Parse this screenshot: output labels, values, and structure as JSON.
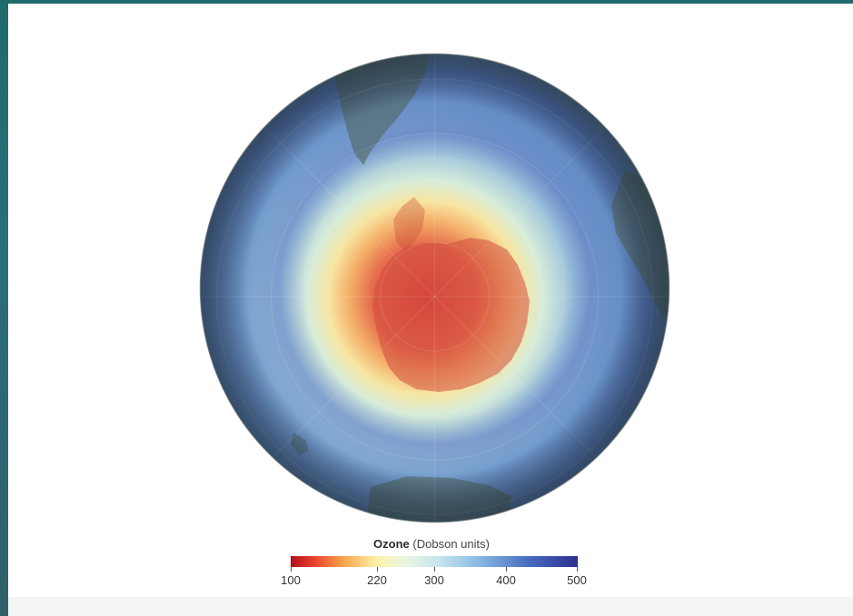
{
  "legend": {
    "title": "Ozone",
    "unit": "(Dobson units)",
    "ticks": [
      "100",
      "220",
      "300",
      "400",
      "500"
    ],
    "range": [
      100,
      500
    ],
    "colors": [
      "#b30f1d",
      "#f7a24a",
      "#fff2a8",
      "#c4e4ef",
      "#4a6fc2",
      "#2c2f8e"
    ]
  },
  "map": {
    "projection": "south-polar orthographic",
    "colors": {
      "ocean_tint": "#5f8db8",
      "land_overlay": "#55685a",
      "hole_core": "#e0584a"
    }
  }
}
